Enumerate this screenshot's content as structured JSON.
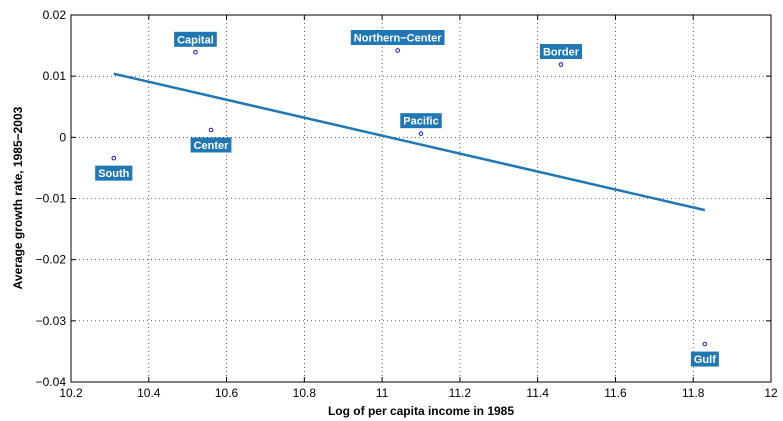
{
  "chart_data": {
    "type": "scatter",
    "xlabel": "Log of per capita income in 1985",
    "ylabel": "Average growth rate, 1985−2003",
    "xlim": [
      10.2,
      12
    ],
    "ylim": [
      -0.04,
      0.02
    ],
    "xticks": [
      10.2,
      10.4,
      10.6,
      10.8,
      11,
      11.2,
      11.4,
      11.6,
      11.8,
      12
    ],
    "xtick_labels": [
      "10.2",
      "10.4",
      "10.6",
      "10.8",
      "11",
      "11.2",
      "11.4",
      "11.6",
      "11.8",
      "12"
    ],
    "yticks": [
      -0.04,
      -0.03,
      -0.02,
      -0.01,
      0,
      0.01,
      0.02
    ],
    "ytick_labels": [
      "−0.04",
      "−0.03",
      "−0.02",
      "−0.01",
      "0",
      "0.01",
      "0.02"
    ],
    "grid": true,
    "points": [
      {
        "label": "Capital",
        "x": 10.52,
        "y": 0.0139,
        "label_pos": "above"
      },
      {
        "label": "Northern−Center",
        "x": 11.04,
        "y": 0.0142,
        "label_pos": "above"
      },
      {
        "label": "Border",
        "x": 11.46,
        "y": 0.0119,
        "label_pos": "above"
      },
      {
        "label": "Pacific",
        "x": 11.1,
        "y": 0.0006,
        "label_pos": "above"
      },
      {
        "label": "Center",
        "x": 10.56,
        "y": 0.0012,
        "label_pos": "below"
      },
      {
        "label": "South",
        "x": 10.31,
        "y": -0.0034,
        "label_pos": "below"
      },
      {
        "label": "Gulf",
        "x": 11.83,
        "y": -0.0338,
        "label_pos": "below"
      }
    ],
    "fit_line": {
      "x": [
        10.31,
        11.83
      ],
      "y": [
        0.0104,
        -0.0119
      ]
    },
    "colors": {
      "marker": "#0000cc",
      "fit_line": "#1f77b4",
      "label_bg": "#1f77b4",
      "label_text": "#ffffff"
    }
  }
}
